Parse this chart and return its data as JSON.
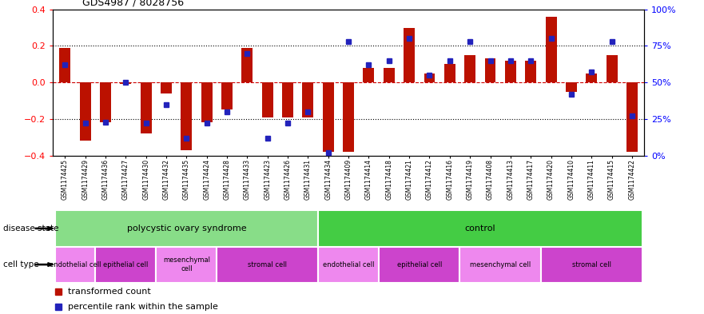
{
  "title": "GDS4987 / 8028756",
  "samples": [
    "GSM1174425",
    "GSM1174429",
    "GSM1174436",
    "GSM1174427",
    "GSM1174430",
    "GSM1174432",
    "GSM1174435",
    "GSM1174424",
    "GSM1174428",
    "GSM1174433",
    "GSM1174423",
    "GSM1174426",
    "GSM1174431",
    "GSM1174434",
    "GSM1174409",
    "GSM1174414",
    "GSM1174418",
    "GSM1174421",
    "GSM1174412",
    "GSM1174416",
    "GSM1174419",
    "GSM1174408",
    "GSM1174413",
    "GSM1174417",
    "GSM1174420",
    "GSM1174410",
    "GSM1174411",
    "GSM1174415",
    "GSM1174422"
  ],
  "bar_values": [
    0.19,
    -0.32,
    -0.22,
    -0.01,
    -0.28,
    -0.06,
    -0.37,
    -0.22,
    -0.15,
    0.19,
    -0.19,
    -0.19,
    -0.19,
    -0.38,
    -0.38,
    0.08,
    0.08,
    0.3,
    0.05,
    0.1,
    0.15,
    0.13,
    0.12,
    0.12,
    0.36,
    -0.05,
    0.05,
    0.15,
    -0.38
  ],
  "dot_percentiles": [
    62,
    22,
    23,
    50,
    22,
    35,
    12,
    22,
    30,
    70,
    12,
    22,
    30,
    2,
    78,
    62,
    65,
    80,
    55,
    65,
    78,
    65,
    65,
    65,
    80,
    42,
    57,
    78,
    27
  ],
  "bar_color": "#bb1100",
  "dot_color": "#2222bb",
  "zero_line_color": "#cc0000",
  "ylim": [
    -0.4,
    0.4
  ],
  "y2lim": [
    0,
    100
  ],
  "yticks": [
    -0.4,
    -0.2,
    0.0,
    0.2,
    0.4
  ],
  "y2ticks": [
    0,
    25,
    50,
    75,
    100
  ],
  "disease_state_groups": [
    {
      "label": "polycystic ovary syndrome",
      "start": 0,
      "end": 13,
      "color": "#88dd88"
    },
    {
      "label": "control",
      "start": 13,
      "end": 29,
      "color": "#44cc44"
    }
  ],
  "cell_type_groups": [
    {
      "label": "endothelial cell",
      "start": 0,
      "end": 2,
      "color": "#ee88ee"
    },
    {
      "label": "epithelial cell",
      "start": 2,
      "end": 5,
      "color": "#cc44cc"
    },
    {
      "label": "mesenchymal\ncell",
      "start": 5,
      "end": 8,
      "color": "#ee88ee"
    },
    {
      "label": "stromal cell",
      "start": 8,
      "end": 13,
      "color": "#cc44cc"
    },
    {
      "label": "endothelial cell",
      "start": 13,
      "end": 16,
      "color": "#ee88ee"
    },
    {
      "label": "epithelial cell",
      "start": 16,
      "end": 20,
      "color": "#cc44cc"
    },
    {
      "label": "mesenchymal cell",
      "start": 20,
      "end": 24,
      "color": "#ee88ee"
    },
    {
      "label": "stromal cell",
      "start": 24,
      "end": 29,
      "color": "#cc44cc"
    }
  ],
  "disease_state_label": "disease state",
  "cell_type_label": "cell type",
  "legend_bar": "transformed count",
  "legend_dot": "percentile rank within the sample",
  "bg_color": "#ffffff"
}
